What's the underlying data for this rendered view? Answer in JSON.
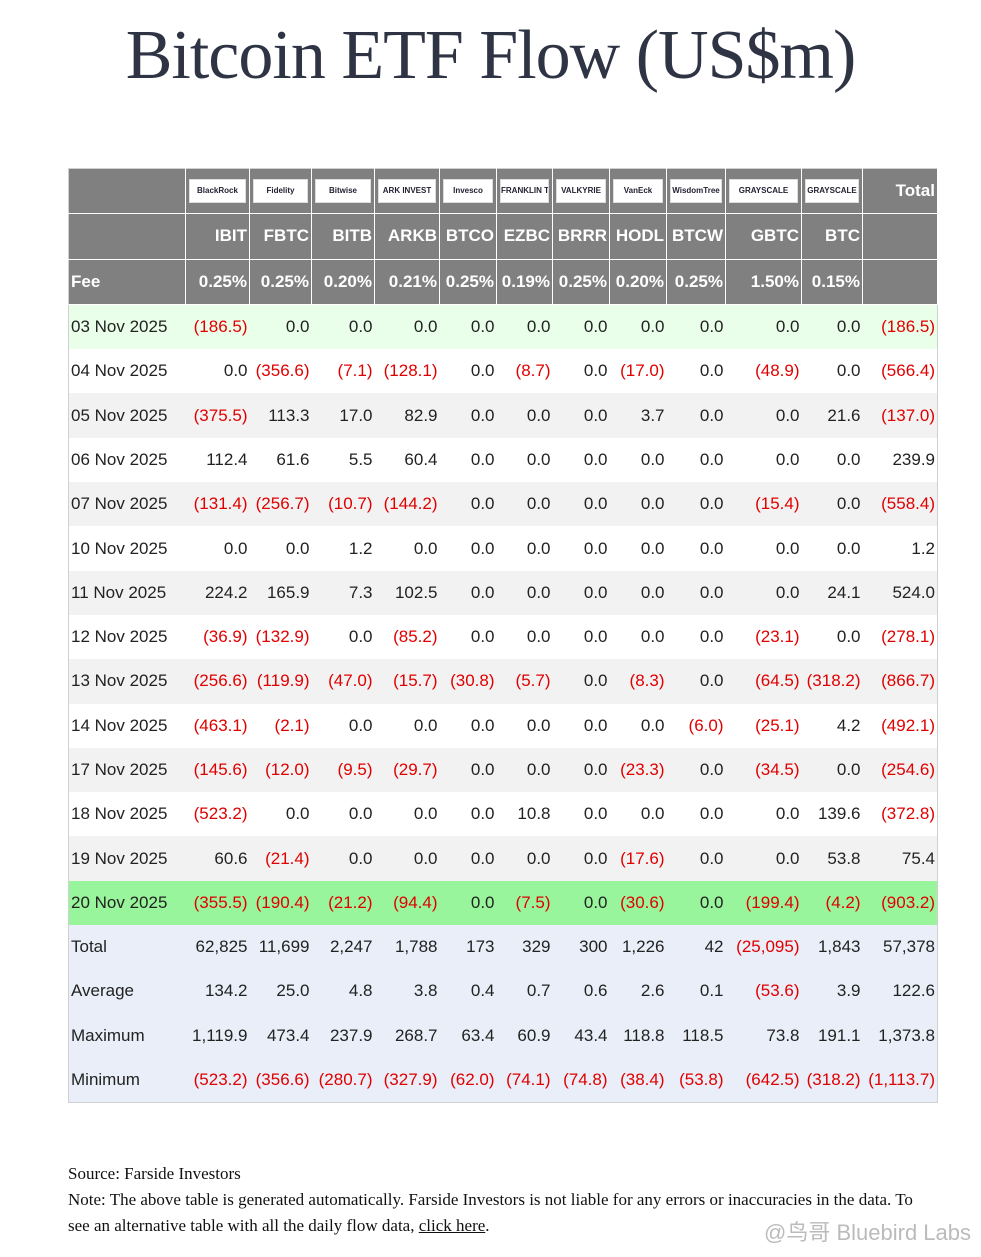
{
  "title": "Bitcoin ETF Flow (US$m)",
  "logos": [
    "BlackRock",
    "Fidelity",
    "Bitwise",
    "ARK INVEST",
    "Invesco",
    "FRANKLIN TEMPLETON",
    "VALKYRIE",
    "VanEck",
    "WisdomTree",
    "GRAYSCALE",
    "GRAYSCALE"
  ],
  "header_total": "Total",
  "tickers": [
    "IBIT",
    "FBTC",
    "BITB",
    "ARKB",
    "BTCO",
    "EZBC",
    "BRRR",
    "HODL",
    "BTCW",
    "GBTC",
    "BTC"
  ],
  "fee_label": "Fee",
  "fees": [
    "0.25%",
    "0.25%",
    "0.20%",
    "0.21%",
    "0.25%",
    "0.19%",
    "0.25%",
    "0.20%",
    "0.25%",
    "1.50%",
    "0.15%"
  ],
  "rows": [
    [
      "03 Nov 2025",
      "(186.5)",
      "0.0",
      "0.0",
      "0.0",
      "0.0",
      "0.0",
      "0.0",
      "0.0",
      "0.0",
      "0.0",
      "0.0",
      "(186.5)"
    ],
    [
      "04 Nov 2025",
      "0.0",
      "(356.6)",
      "(7.1)",
      "(128.1)",
      "0.0",
      "(8.7)",
      "0.0",
      "(17.0)",
      "0.0",
      "(48.9)",
      "0.0",
      "(566.4)"
    ],
    [
      "05 Nov 2025",
      "(375.5)",
      "113.3",
      "17.0",
      "82.9",
      "0.0",
      "0.0",
      "0.0",
      "3.7",
      "0.0",
      "0.0",
      "21.6",
      "(137.0)"
    ],
    [
      "06 Nov 2025",
      "112.4",
      "61.6",
      "5.5",
      "60.4",
      "0.0",
      "0.0",
      "0.0",
      "0.0",
      "0.0",
      "0.0",
      "0.0",
      "239.9"
    ],
    [
      "07 Nov 2025",
      "(131.4)",
      "(256.7)",
      "(10.7)",
      "(144.2)",
      "0.0",
      "0.0",
      "0.0",
      "0.0",
      "0.0",
      "(15.4)",
      "0.0",
      "(558.4)"
    ],
    [
      "10 Nov 2025",
      "0.0",
      "0.0",
      "1.2",
      "0.0",
      "0.0",
      "0.0",
      "0.0",
      "0.0",
      "0.0",
      "0.0",
      "0.0",
      "1.2"
    ],
    [
      "11 Nov 2025",
      "224.2",
      "165.9",
      "7.3",
      "102.5",
      "0.0",
      "0.0",
      "0.0",
      "0.0",
      "0.0",
      "0.0",
      "24.1",
      "524.0"
    ],
    [
      "12 Nov 2025",
      "(36.9)",
      "(132.9)",
      "0.0",
      "(85.2)",
      "0.0",
      "0.0",
      "0.0",
      "0.0",
      "0.0",
      "(23.1)",
      "0.0",
      "(278.1)"
    ],
    [
      "13 Nov 2025",
      "(256.6)",
      "(119.9)",
      "(47.0)",
      "(15.7)",
      "(30.8)",
      "(5.7)",
      "0.0",
      "(8.3)",
      "0.0",
      "(64.5)",
      "(318.2)",
      "(866.7)"
    ],
    [
      "14 Nov 2025",
      "(463.1)",
      "(2.1)",
      "0.0",
      "0.0",
      "0.0",
      "0.0",
      "0.0",
      "0.0",
      "(6.0)",
      "(25.1)",
      "4.2",
      "(492.1)"
    ],
    [
      "17 Nov 2025",
      "(145.6)",
      "(12.0)",
      "(9.5)",
      "(29.7)",
      "0.0",
      "0.0",
      "0.0",
      "(23.3)",
      "0.0",
      "(34.5)",
      "0.0",
      "(254.6)"
    ],
    [
      "18 Nov 2025",
      "(523.2)",
      "0.0",
      "0.0",
      "0.0",
      "0.0",
      "10.8",
      "0.0",
      "0.0",
      "0.0",
      "0.0",
      "139.6",
      "(372.8)"
    ],
    [
      "19 Nov 2025",
      "60.6",
      "(21.4)",
      "0.0",
      "0.0",
      "0.0",
      "0.0",
      "0.0",
      "(17.6)",
      "0.0",
      "0.0",
      "53.8",
      "75.4"
    ],
    [
      "20 Nov 2025",
      "(355.5)",
      "(190.4)",
      "(21.2)",
      "(94.4)",
      "0.0",
      "(7.5)",
      "0.0",
      "(30.6)",
      "0.0",
      "(199.4)",
      "(4.2)",
      "(903.2)"
    ]
  ],
  "summary": [
    [
      "Total",
      "62,825",
      "11,699",
      "2,247",
      "1,788",
      "173",
      "329",
      "300",
      "1,226",
      "42",
      "(25,095)",
      "1,843",
      "57,378"
    ],
    [
      "Average",
      "134.2",
      "25.0",
      "4.8",
      "3.8",
      "0.4",
      "0.7",
      "0.6",
      "2.6",
      "0.1",
      "(53.6)",
      "3.9",
      "122.6"
    ],
    [
      "Maximum",
      "1,119.9",
      "473.4",
      "237.9",
      "268.7",
      "63.4",
      "60.9",
      "43.4",
      "118.8",
      "118.5",
      "73.8",
      "191.1",
      "1,373.8"
    ],
    [
      "Minimum",
      "(523.2)",
      "(356.6)",
      "(280.7)",
      "(327.9)",
      "(62.0)",
      "(74.1)",
      "(74.8)",
      "(38.4)",
      "(53.8)",
      "(642.5)",
      "(318.2)",
      "(1,113.7)"
    ]
  ],
  "source": "Source: Farside Investors",
  "note": "Note: The above table is generated automatically. Farside Investors is not liable for any errors or inaccuracies in the data. To see an alternative table with all the daily flow data, ",
  "link": "click here",
  "note_end": ".",
  "watermark": "@鸟哥 Bluebird Labs"
}
